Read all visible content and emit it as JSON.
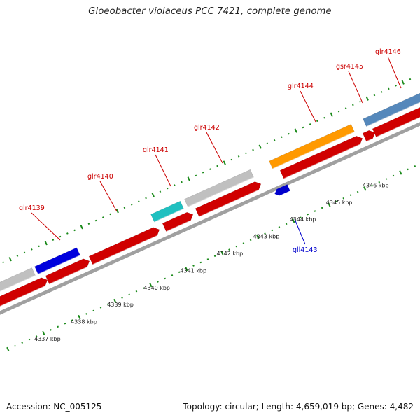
{
  "title": "Gloeobacter violaceus PCC 7421, complete genome",
  "footer": {
    "accession": "Accession: NC_005125",
    "stats": "Topology: circular; Length: 4,659,019 bp; Genes: 4,482"
  },
  "colors": {
    "backbone": "#a0a0a0",
    "tick": "#1a8a1a",
    "label_forward": "#cc0000",
    "label_reverse": "#0000cc"
  },
  "scale_labels": [
    "4337 kbp",
    "4338 kbp",
    "4339 kbp",
    "4340 kbp",
    "4341 kbp",
    "4342 kbp",
    "4343 kbp",
    "4344 kbp",
    "4345 kbp",
    "4346 kbp"
  ],
  "genes": [
    {
      "name": "glr4139",
      "color": "#d00000",
      "strand": "forward"
    },
    {
      "name": "glr4140",
      "color": "#d00000",
      "strand": "forward"
    },
    {
      "name": "glr4141",
      "color": "#d00000",
      "strand": "forward"
    },
    {
      "name": "glr4142",
      "color": "#d00000",
      "strand": "forward"
    },
    {
      "name": "gll4143",
      "color": "#0000cc",
      "strand": "reverse"
    },
    {
      "name": "glr4144",
      "color": "#d00000",
      "strand": "forward"
    },
    {
      "name": "gsr4145",
      "color": "#d00000",
      "strand": "forward"
    },
    {
      "name": "glr4146",
      "color": "#d00000",
      "strand": "forward"
    }
  ],
  "cog_colors": {
    "grey": "#c0c0c0",
    "blue": "#0000dd",
    "cyan": "#20c0c0",
    "orange": "#ff9900",
    "steel": "#5588bb"
  }
}
